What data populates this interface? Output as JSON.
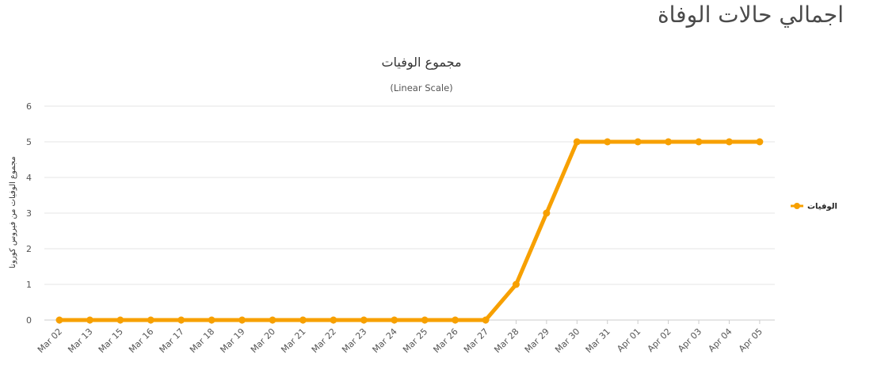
{
  "page": {
    "heading": "اجمالي حالات الوفاة"
  },
  "colors": {
    "series": "#f7a000",
    "grid": "#e6e6e6",
    "axis": "#cccccc"
  },
  "chart_data": {
    "type": "line",
    "title": "مجموع الوفيات",
    "subtitle": "(Linear Scale)",
    "xlabel": "",
    "ylabel": "مجموع الوفيات من فيروس كورونا",
    "ylim": [
      0,
      6
    ],
    "yticks": [
      "0",
      "1",
      "2",
      "3",
      "4",
      "5",
      "6"
    ],
    "grid": true,
    "legend_position": "right",
    "categories": [
      "Mar 02",
      "Mar 13",
      "Mar 15",
      "Mar 16",
      "Mar 17",
      "Mar 18",
      "Mar 19",
      "Mar 20",
      "Mar 21",
      "Mar 22",
      "Mar 23",
      "Mar 24",
      "Mar 25",
      "Mar 26",
      "Mar 27",
      "Mar 28",
      "Mar 29",
      "Mar 30",
      "Mar 31",
      "Apr 01",
      "Apr 02",
      "Apr 03",
      "Apr 04",
      "Apr 05"
    ],
    "series": [
      {
        "name": "الوفيات",
        "values": [
          0,
          0,
          0,
          0,
          0,
          0,
          0,
          0,
          0,
          0,
          0,
          0,
          0,
          0,
          0,
          1,
          3,
          5,
          5,
          5,
          5,
          5,
          5,
          5
        ]
      }
    ]
  }
}
